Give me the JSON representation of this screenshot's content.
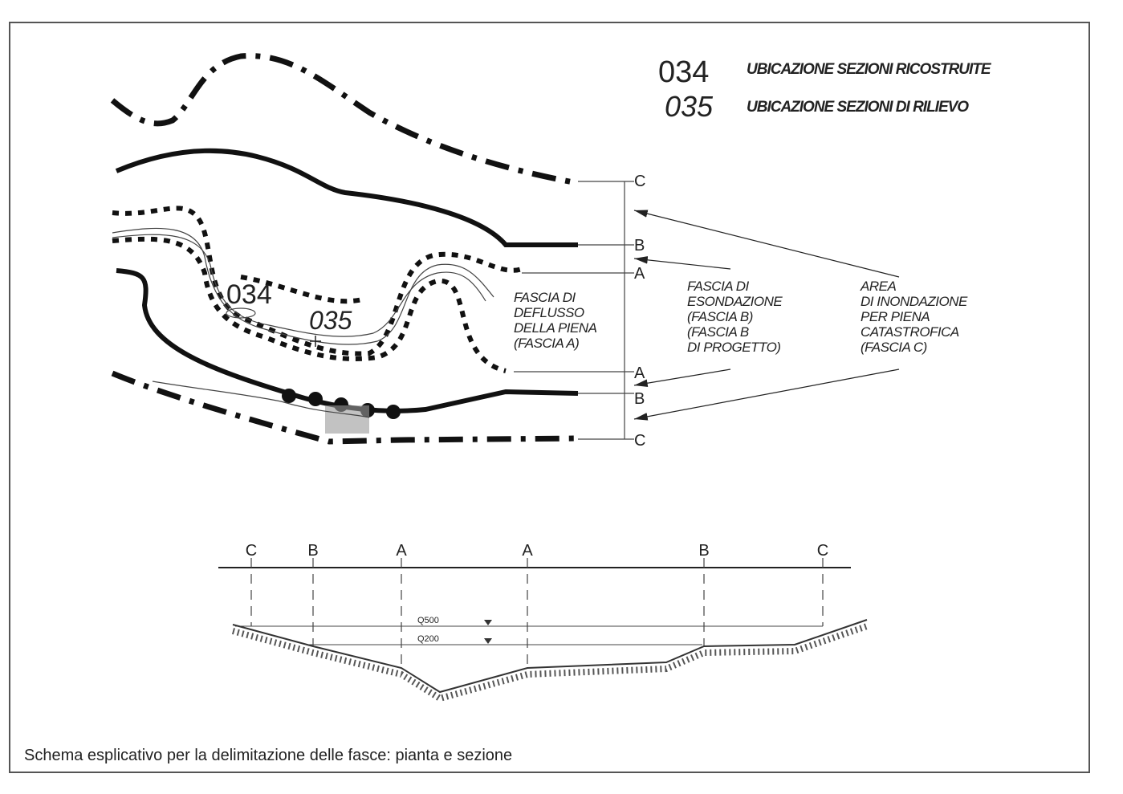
{
  "legend": [
    {
      "code": "034",
      "label": "UBICAZIONE SEZIONI RICOSTRUITE"
    },
    {
      "code": "035",
      "label": "UBICAZIONE SEZIONI DI RILIEVO"
    }
  ],
  "plan": {
    "boundary_labels": [
      "C",
      "B",
      "A",
      "A",
      "B",
      "C"
    ],
    "map_labels": [
      "034",
      "035"
    ],
    "notes": [
      {
        "lines": [
          "FASCIA DI",
          "DEFLUSSO",
          "DELLA PIENA",
          "(FASCIA A)"
        ]
      },
      {
        "lines": [
          "FASCIA DI",
          "ESONDAZIONE",
          "(FASCIA B)",
          "(FASCIA B",
          "DI PROGETTO)"
        ]
      },
      {
        "lines": [
          "AREA",
          "DI INONDAZIONE",
          "PER PIENA",
          "CATASTROFICA",
          "(FASCIA C)"
        ]
      }
    ]
  },
  "section": {
    "boundary_labels": [
      "C",
      "B",
      "A",
      "A",
      "B",
      "C"
    ],
    "levels": [
      "Q500",
      "Q200"
    ]
  },
  "caption": "Schema esplicativo per la delimitazione delle fasce: pianta e sezione"
}
